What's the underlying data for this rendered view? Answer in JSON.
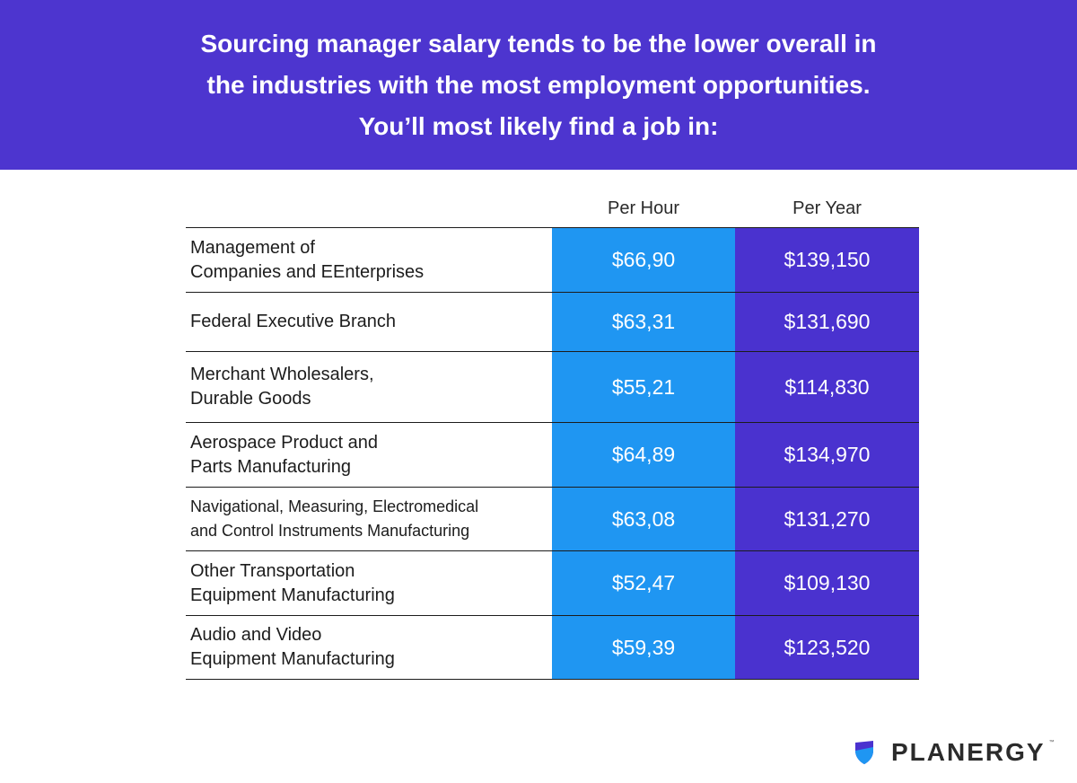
{
  "header": {
    "lines": [
      "Sourcing manager salary tends to be the lower overall in",
      "the industries with the most employment opportunities.",
      "You’ll most likely find a job in:"
    ],
    "background": "#4d35cf"
  },
  "table": {
    "columns": [
      "",
      "Per Hour",
      "Per Year"
    ],
    "rows": [
      {
        "label": "Management of\nCompanies and EEnterprises",
        "per_hour": "$66,90",
        "per_year": "$139,150"
      },
      {
        "label": "Federal Executive Branch",
        "per_hour": "$63,31",
        "per_year": "$131,690"
      },
      {
        "label": "Merchant Wholesalers,\nDurable Goods",
        "per_hour": "$55,21",
        "per_year": "$114,830"
      },
      {
        "label": "Aerospace Product and\nParts Manufacturing",
        "per_hour": "$64,89",
        "per_year": "$134,970"
      },
      {
        "label": "Navigational, Measuring, Electromedical\nand Control Instruments Manufacturing",
        "per_hour": "$63,08",
        "per_year": "$131,270"
      },
      {
        "label": "Other Transportation\nEquipment Manufacturing",
        "per_hour": "$52,47",
        "per_year": "$109,130"
      },
      {
        "label": "Audio and Video\nEquipment Manufacturing",
        "per_hour": "$59,39",
        "per_year": "$123,520"
      }
    ],
    "colors": {
      "per_hour": "#1f96f2",
      "per_year": "#4a32cf"
    }
  },
  "brand": {
    "name": "PLANERGY",
    "trademark": "™",
    "icon": "shield-icon",
    "icon_colors": [
      "#4a32cf",
      "#1f96f2"
    ]
  }
}
